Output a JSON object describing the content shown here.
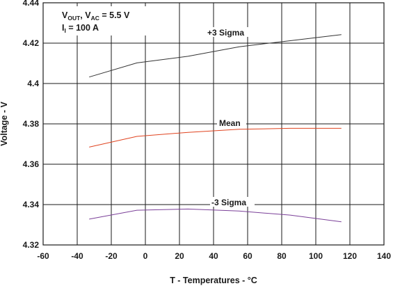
{
  "chart_data": {
    "type": "line",
    "xlabel": "T - Temperatures - °C",
    "ylabel": "Voltage - V",
    "xlim": [
      -60,
      140
    ],
    "ylim": [
      4.32,
      4.44
    ],
    "grid": true,
    "x_ticks": [
      -60,
      -40,
      -20,
      0,
      20,
      40,
      60,
      80,
      100,
      120,
      140
    ],
    "x_tick_labels": [
      "-60",
      "-40",
      "-20",
      "0",
      "20",
      "40",
      "60",
      "80",
      "100",
      "120",
      "140"
    ],
    "y_ticks": [
      4.32,
      4.34,
      4.36,
      4.38,
      4.4,
      4.42,
      4.44
    ],
    "y_tick_labels": [
      "4.32",
      "4.34",
      "4.36",
      "4.38",
      "4.4",
      "4.42",
      "4.44"
    ],
    "annotations": {
      "line1": {
        "v1": "V",
        "v1_sub": "OUT",
        "sep": ", V",
        "v2_sub": "AC",
        "rest": " = 5.5 V"
      },
      "line2": {
        "i": "I",
        "i_sub": "I",
        "rest": " = 100 A"
      }
    },
    "series": [
      {
        "name": "+3 Sigma",
        "color": "#333333",
        "x": [
          -33,
          -5,
          25,
          55,
          85,
          115
        ],
        "y": [
          4.4032,
          4.4102,
          4.4135,
          4.4182,
          4.4212,
          4.4242
        ]
      },
      {
        "name": "Mean",
        "color": "#e0431f",
        "x": [
          -33,
          -5,
          25,
          55,
          85,
          115
        ],
        "y": [
          4.3685,
          4.3738,
          4.3758,
          4.3773,
          4.3778,
          4.3778
        ]
      },
      {
        "name": "-3 Sigma",
        "color": "#7a3f98",
        "x": [
          -33,
          -5,
          25,
          55,
          85,
          115
        ],
        "y": [
          4.3328,
          4.3372,
          4.3378,
          4.3368,
          4.3348,
          4.3315
        ]
      }
    ]
  }
}
